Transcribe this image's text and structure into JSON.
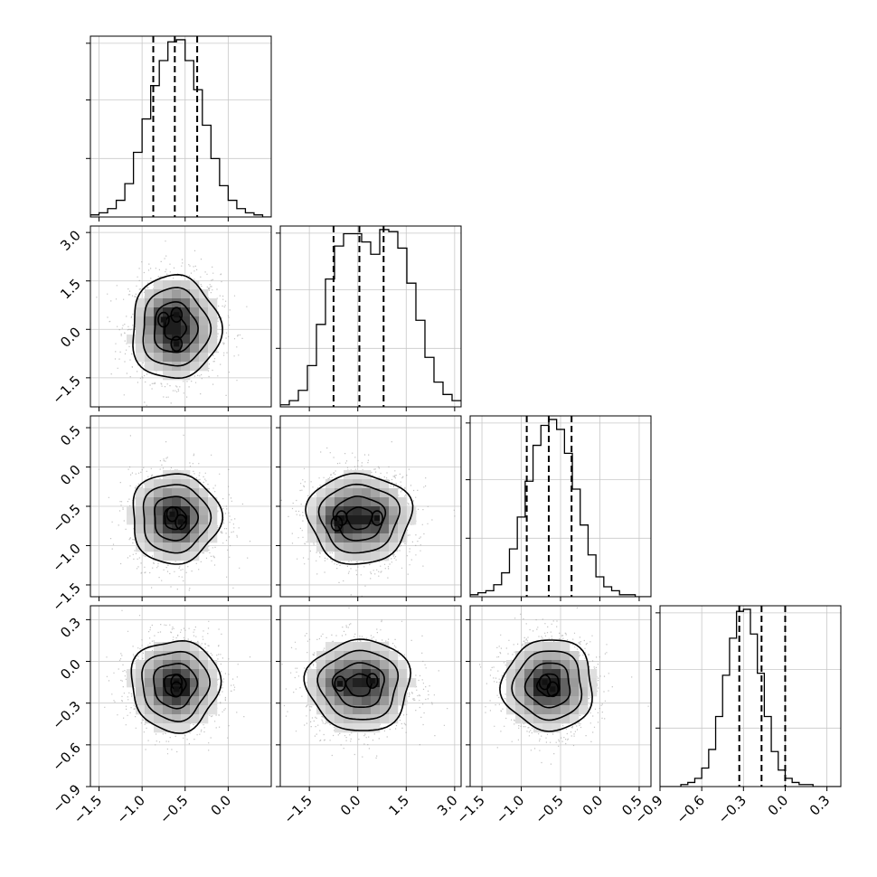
{
  "chart_data": {
    "type": "corner",
    "n_params": 4,
    "grid": true,
    "params": [
      {
        "range": [
          -1.6,
          0.5
        ],
        "ticks": [
          -1.5,
          -1.0,
          -0.5,
          0.0
        ],
        "tick_labels": [
          "−1.5",
          "−1.0",
          "−0.5",
          "0.0"
        ],
        "quantiles": [
          -0.87,
          -0.62,
          -0.36
        ],
        "mean": -0.62,
        "sd": 0.25,
        "hist_bin_width": 0.1,
        "hist_counts": [
          1,
          2,
          4,
          8,
          16,
          31,
          47,
          63,
          75,
          84,
          85,
          75,
          61,
          44,
          28,
          15,
          8,
          4,
          2,
          1,
          0
        ]
      },
      {
        "range": [
          -2.4,
          3.2
        ],
        "ticks": [
          -1.5,
          0.0,
          1.5,
          3.0
        ],
        "tick_labels": [
          "−1.5",
          "0.0",
          "1.5",
          "3.0"
        ],
        "quantiles": [
          -0.75,
          0.05,
          0.8
        ],
        "mean": 0.05,
        "sd": 0.78,
        "hist_bin_width": 0.28,
        "hist_counts": [
          1,
          3,
          8,
          20,
          40,
          62,
          78,
          84,
          84,
          80,
          74,
          86,
          85,
          77,
          60,
          42,
          24,
          12,
          6,
          3
        ]
      },
      {
        "range": [
          -1.65,
          0.65
        ],
        "ticks": [
          -1.5,
          -1.0,
          -0.5,
          0.0,
          0.5
        ],
        "tick_labels": [
          "−1.5",
          "−1.0",
          "−0.5",
          "0.0",
          "0.5"
        ],
        "quantiles": [
          -0.93,
          -0.65,
          -0.36
        ],
        "mean": -0.65,
        "sd": 0.28,
        "hist_bin_width": 0.1,
        "hist_counts": [
          1,
          2,
          3,
          6,
          12,
          24,
          40,
          58,
          76,
          86,
          89,
          84,
          72,
          54,
          36,
          21,
          10,
          5,
          3,
          1,
          1,
          0,
          0
        ]
      },
      {
        "range": [
          -0.9,
          0.4
        ],
        "ticks": [
          -0.9,
          -0.6,
          -0.3,
          0.0,
          0.3
        ],
        "tick_labels": [
          "−0.9",
          "−0.6",
          "−0.3",
          "0.0",
          "0.3"
        ],
        "quantiles": [
          -0.33,
          -0.17,
          0.0
        ],
        "mean": -0.17,
        "sd": 0.16,
        "hist_bin_width": 0.05,
        "hist_counts": [
          0,
          0,
          0,
          1,
          2,
          4,
          9,
          18,
          34,
          54,
          72,
          85,
          86,
          74,
          55,
          34,
          17,
          8,
          4,
          2,
          1,
          1,
          0,
          0,
          0,
          0
        ]
      }
    ],
    "histogram_row_ticks": {
      "0": [
        0.33,
        0.66,
        0.98
      ],
      "1": [
        0.33,
        0.66,
        0.98
      ],
      "2": [
        0.33,
        0.66,
        0.98
      ],
      "3": [
        0.33,
        0.66,
        0.98
      ]
    },
    "pair_mode_centers": {
      "1-0": [
        [
          -0.6,
          -0.45
        ],
        [
          -0.6,
          0.45
        ],
        [
          -0.75,
          0.3
        ]
      ],
      "2-0": [
        [
          -0.65,
          -0.6
        ],
        [
          -0.55,
          -0.7
        ]
      ],
      "2-1": [
        [
          -0.5,
          -0.65
        ],
        [
          0.6,
          -0.65
        ],
        [
          -0.65,
          -0.72
        ]
      ],
      "3-0": [
        [
          -0.6,
          -0.15
        ],
        [
          -0.6,
          -0.2
        ]
      ],
      "3-1": [
        [
          -0.55,
          -0.16
        ],
        [
          0.45,
          -0.14
        ]
      ],
      "3-2": [
        [
          -0.7,
          -0.15
        ],
        [
          -0.6,
          -0.2
        ]
      ]
    }
  }
}
